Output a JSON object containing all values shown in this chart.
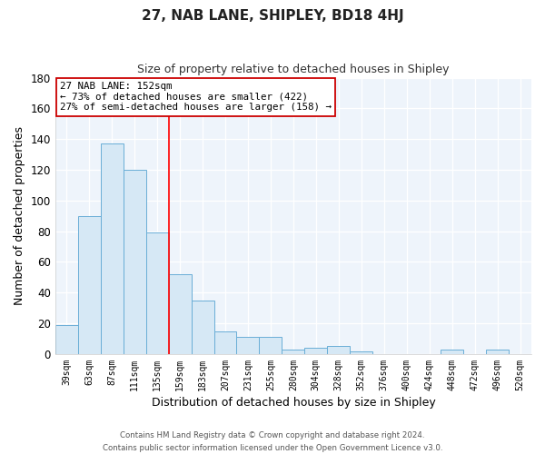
{
  "title": "27, NAB LANE, SHIPLEY, BD18 4HJ",
  "subtitle": "Size of property relative to detached houses in Shipley",
  "xlabel": "Distribution of detached houses by size in Shipley",
  "ylabel": "Number of detached properties",
  "bar_labels": [
    "39sqm",
    "63sqm",
    "87sqm",
    "111sqm",
    "135sqm",
    "159sqm",
    "183sqm",
    "207sqm",
    "231sqm",
    "255sqm",
    "280sqm",
    "304sqm",
    "328sqm",
    "352sqm",
    "376sqm",
    "400sqm",
    "424sqm",
    "448sqm",
    "472sqm",
    "496sqm",
    "520sqm"
  ],
  "bar_values": [
    19,
    90,
    137,
    120,
    79,
    52,
    35,
    15,
    11,
    11,
    3,
    4,
    5,
    2,
    0,
    0,
    0,
    3,
    0,
    3,
    0
  ],
  "bar_color": "#d6e8f5",
  "bar_edge_color": "#6aaed6",
  "background_color": "#ffffff",
  "plot_bg_color": "#eef4fb",
  "ylim": [
    0,
    180
  ],
  "yticks": [
    0,
    20,
    40,
    60,
    80,
    100,
    120,
    140,
    160,
    180
  ],
  "red_line_index": 5,
  "annotation_line1": "27 NAB LANE: 152sqm",
  "annotation_line2": "← 73% of detached houses are smaller (422)",
  "annotation_line3": "27% of semi-detached houses are larger (158) →",
  "footer_line1": "Contains HM Land Registry data © Crown copyright and database right 2024.",
  "footer_line2": "Contains public sector information licensed under the Open Government Licence v3.0."
}
